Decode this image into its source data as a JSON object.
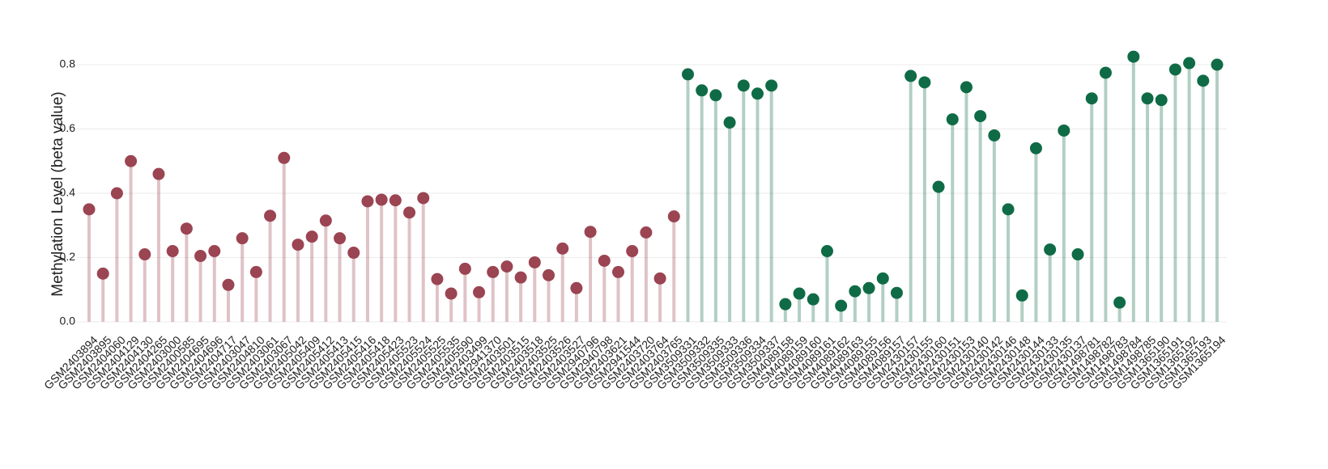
{
  "chart_data": {
    "type": "lollipop",
    "y_label": "Methylation Level (beta value)",
    "categories": [
      "GSM2403894",
      "GSM2403895",
      "GSM2404060",
      "GSM2404129",
      "GSM2404130",
      "GSM2404265",
      "GSM2403000",
      "GSM2400585",
      "GSM2404695",
      "GSM2404696",
      "GSM2404717",
      "GSM2403047",
      "GSM2404810",
      "GSM2403061",
      "GSM2403067",
      "GSM2405042",
      "GSM2405409",
      "GSM2405412",
      "GSM2405413",
      "GSM2405415",
      "GSM2405416",
      "GSM2405418",
      "GSM2405423",
      "GSM2405523",
      "GSM2405524",
      "GSM2405525",
      "GSM2405535",
      "GSM2405590",
      "GSM2403499",
      "GSM2941370",
      "GSM2403501",
      "GSM2403515",
      "GSM2403518",
      "GSM2403525",
      "GSM2403526",
      "GSM2403527",
      "GSM2940796",
      "GSM2940798",
      "GSM2403621",
      "GSM2941544",
      "GSM2403720",
      "GSM2403764",
      "GSM2403765",
      "GSM3509331",
      "GSM3509332",
      "GSM3509335",
      "GSM3509333",
      "GSM3509336",
      "GSM3509334",
      "GSM3509337",
      "GSM4089158",
      "GSM4089159",
      "GSM4089160",
      "GSM4089161",
      "GSM4089162",
      "GSM4089163",
      "GSM4089155",
      "GSM4089156",
      "GSM4089157",
      "GSM2430157",
      "GSM2430155",
      "GSM2430160",
      "GSM2430151",
      "GSM2430153",
      "GSM2430140",
      "GSM2430142",
      "GSM2430146",
      "GSM2430148",
      "GSM2430144",
      "GSM2430133",
      "GSM2430135",
      "GSM2430137",
      "GSM1498781",
      "GSM1498782",
      "GSM1498783",
      "GSM1498784",
      "GSM1498785",
      "GSM1365190",
      "GSM1365191",
      "GSM1365192",
      "GSM1365193",
      "GSM1365194"
    ],
    "values": [
      0.35,
      0.15,
      0.4,
      0.5,
      0.21,
      0.46,
      0.22,
      0.29,
      0.205,
      0.22,
      0.115,
      0.26,
      0.155,
      0.33,
      0.51,
      0.24,
      0.265,
      0.315,
      0.26,
      0.215,
      0.375,
      0.38,
      0.378,
      0.34,
      0.385,
      0.133,
      0.088,
      0.165,
      0.092,
      0.155,
      0.172,
      0.138,
      0.185,
      0.145,
      0.228,
      0.105,
      0.28,
      0.19,
      0.155,
      0.22,
      0.278,
      0.135,
      0.328,
      0.77,
      0.72,
      0.705,
      0.62,
      0.735,
      0.71,
      0.735,
      0.055,
      0.088,
      0.07,
      0.22,
      0.05,
      0.095,
      0.105,
      0.135,
      0.09,
      0.765,
      0.745,
      0.42,
      0.63,
      0.73,
      0.64,
      0.58,
      0.35,
      0.082,
      0.54,
      0.225,
      0.595,
      0.21,
      0.695,
      0.775,
      0.06,
      0.825,
      0.695,
      0.69,
      0.785,
      0.805,
      0.75,
      0.8
    ],
    "group_colors": [
      "#9b4452",
      "#0f6b46"
    ],
    "group_sizes": [
      43,
      39
    ],
    "ylim": [
      0,
      0.8
    ],
    "yticks": [
      {
        "value": 0,
        "label": "0.0"
      },
      {
        "value": 0.2,
        "label": "0.2"
      },
      {
        "value": 0.4,
        "label": "0.4"
      },
      {
        "value": 0.6,
        "label": "0.6"
      },
      {
        "value": 0.8,
        "label": "0.8"
      }
    ],
    "grid": true
  }
}
